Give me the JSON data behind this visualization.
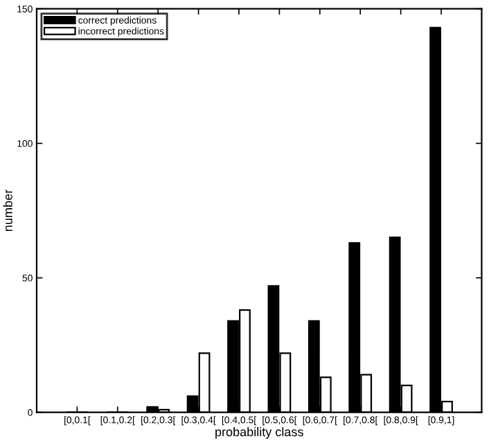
{
  "chart_data": {
    "type": "bar",
    "xlabel": "probability class",
    "ylabel": "number",
    "categories": [
      "[0,0.1[",
      "[0.1,0.2[",
      "[0.2,0.3[",
      "[0.3,0.4[",
      "[0.4,0.5[",
      "[0.5,0.6[",
      "[0.6,0.7[",
      "[0.7,0.8[",
      "[0.8,0.9[",
      "[0.9,1]"
    ],
    "series": [
      {
        "name": "correct predictions",
        "color": "#000000",
        "values": [
          0,
          0,
          2,
          6,
          34,
          47,
          34,
          63,
          65,
          143
        ]
      },
      {
        "name": "incorrect predictions",
        "color": "#ffffff",
        "values": [
          0,
          0,
          1,
          22,
          38,
          22,
          13,
          14,
          10,
          4
        ]
      }
    ],
    "ylim": [
      0,
      150
    ],
    "yticks": [
      0,
      50,
      100,
      150
    ],
    "grid": false,
    "legend": "top left"
  }
}
